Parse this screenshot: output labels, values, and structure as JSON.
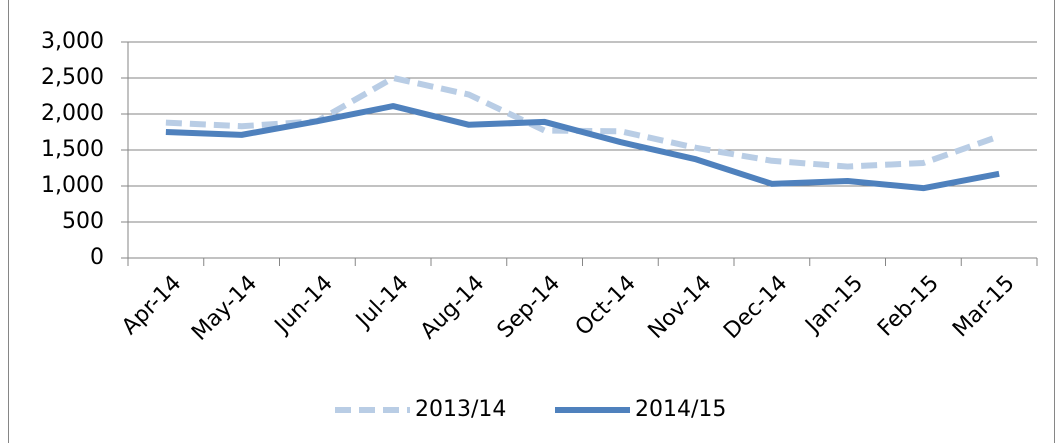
{
  "chart_data": {
    "type": "line",
    "categories": [
      "Apr-14",
      "May-14",
      "Jun-14",
      "Jul-14",
      "Aug-14",
      "Sep-14",
      "Oct-14",
      "Nov-14",
      "Dec-14",
      "Jan-15",
      "Feb-15",
      "Mar-15"
    ],
    "series": [
      {
        "name": "2013/14",
        "color": "#b9cde5",
        "dashed": true,
        "values": [
          1880,
          1830,
          1900,
          2500,
          2270,
          1770,
          1760,
          1530,
          1350,
          1270,
          1320,
          1690
        ]
      },
      {
        "name": "2014/15",
        "color": "#4f81bd",
        "dashed": false,
        "values": [
          1750,
          1710,
          1900,
          2110,
          1850,
          1890,
          1610,
          1370,
          1030,
          1070,
          970,
          1170
        ]
      }
    ],
    "ylim": [
      0,
      3000
    ],
    "yticks": [
      0,
      500,
      {
        "value": 1000,
        "label": "1,000"
      },
      {
        "value": 1500,
        "label": "1,500"
      },
      {
        "value": 2000,
        "label": "2,000"
      },
      {
        "value": 2500,
        "label": "2,500"
      },
      {
        "value": 3000,
        "label": "3,000"
      }
    ],
    "grid": true,
    "legend": "bottom"
  }
}
